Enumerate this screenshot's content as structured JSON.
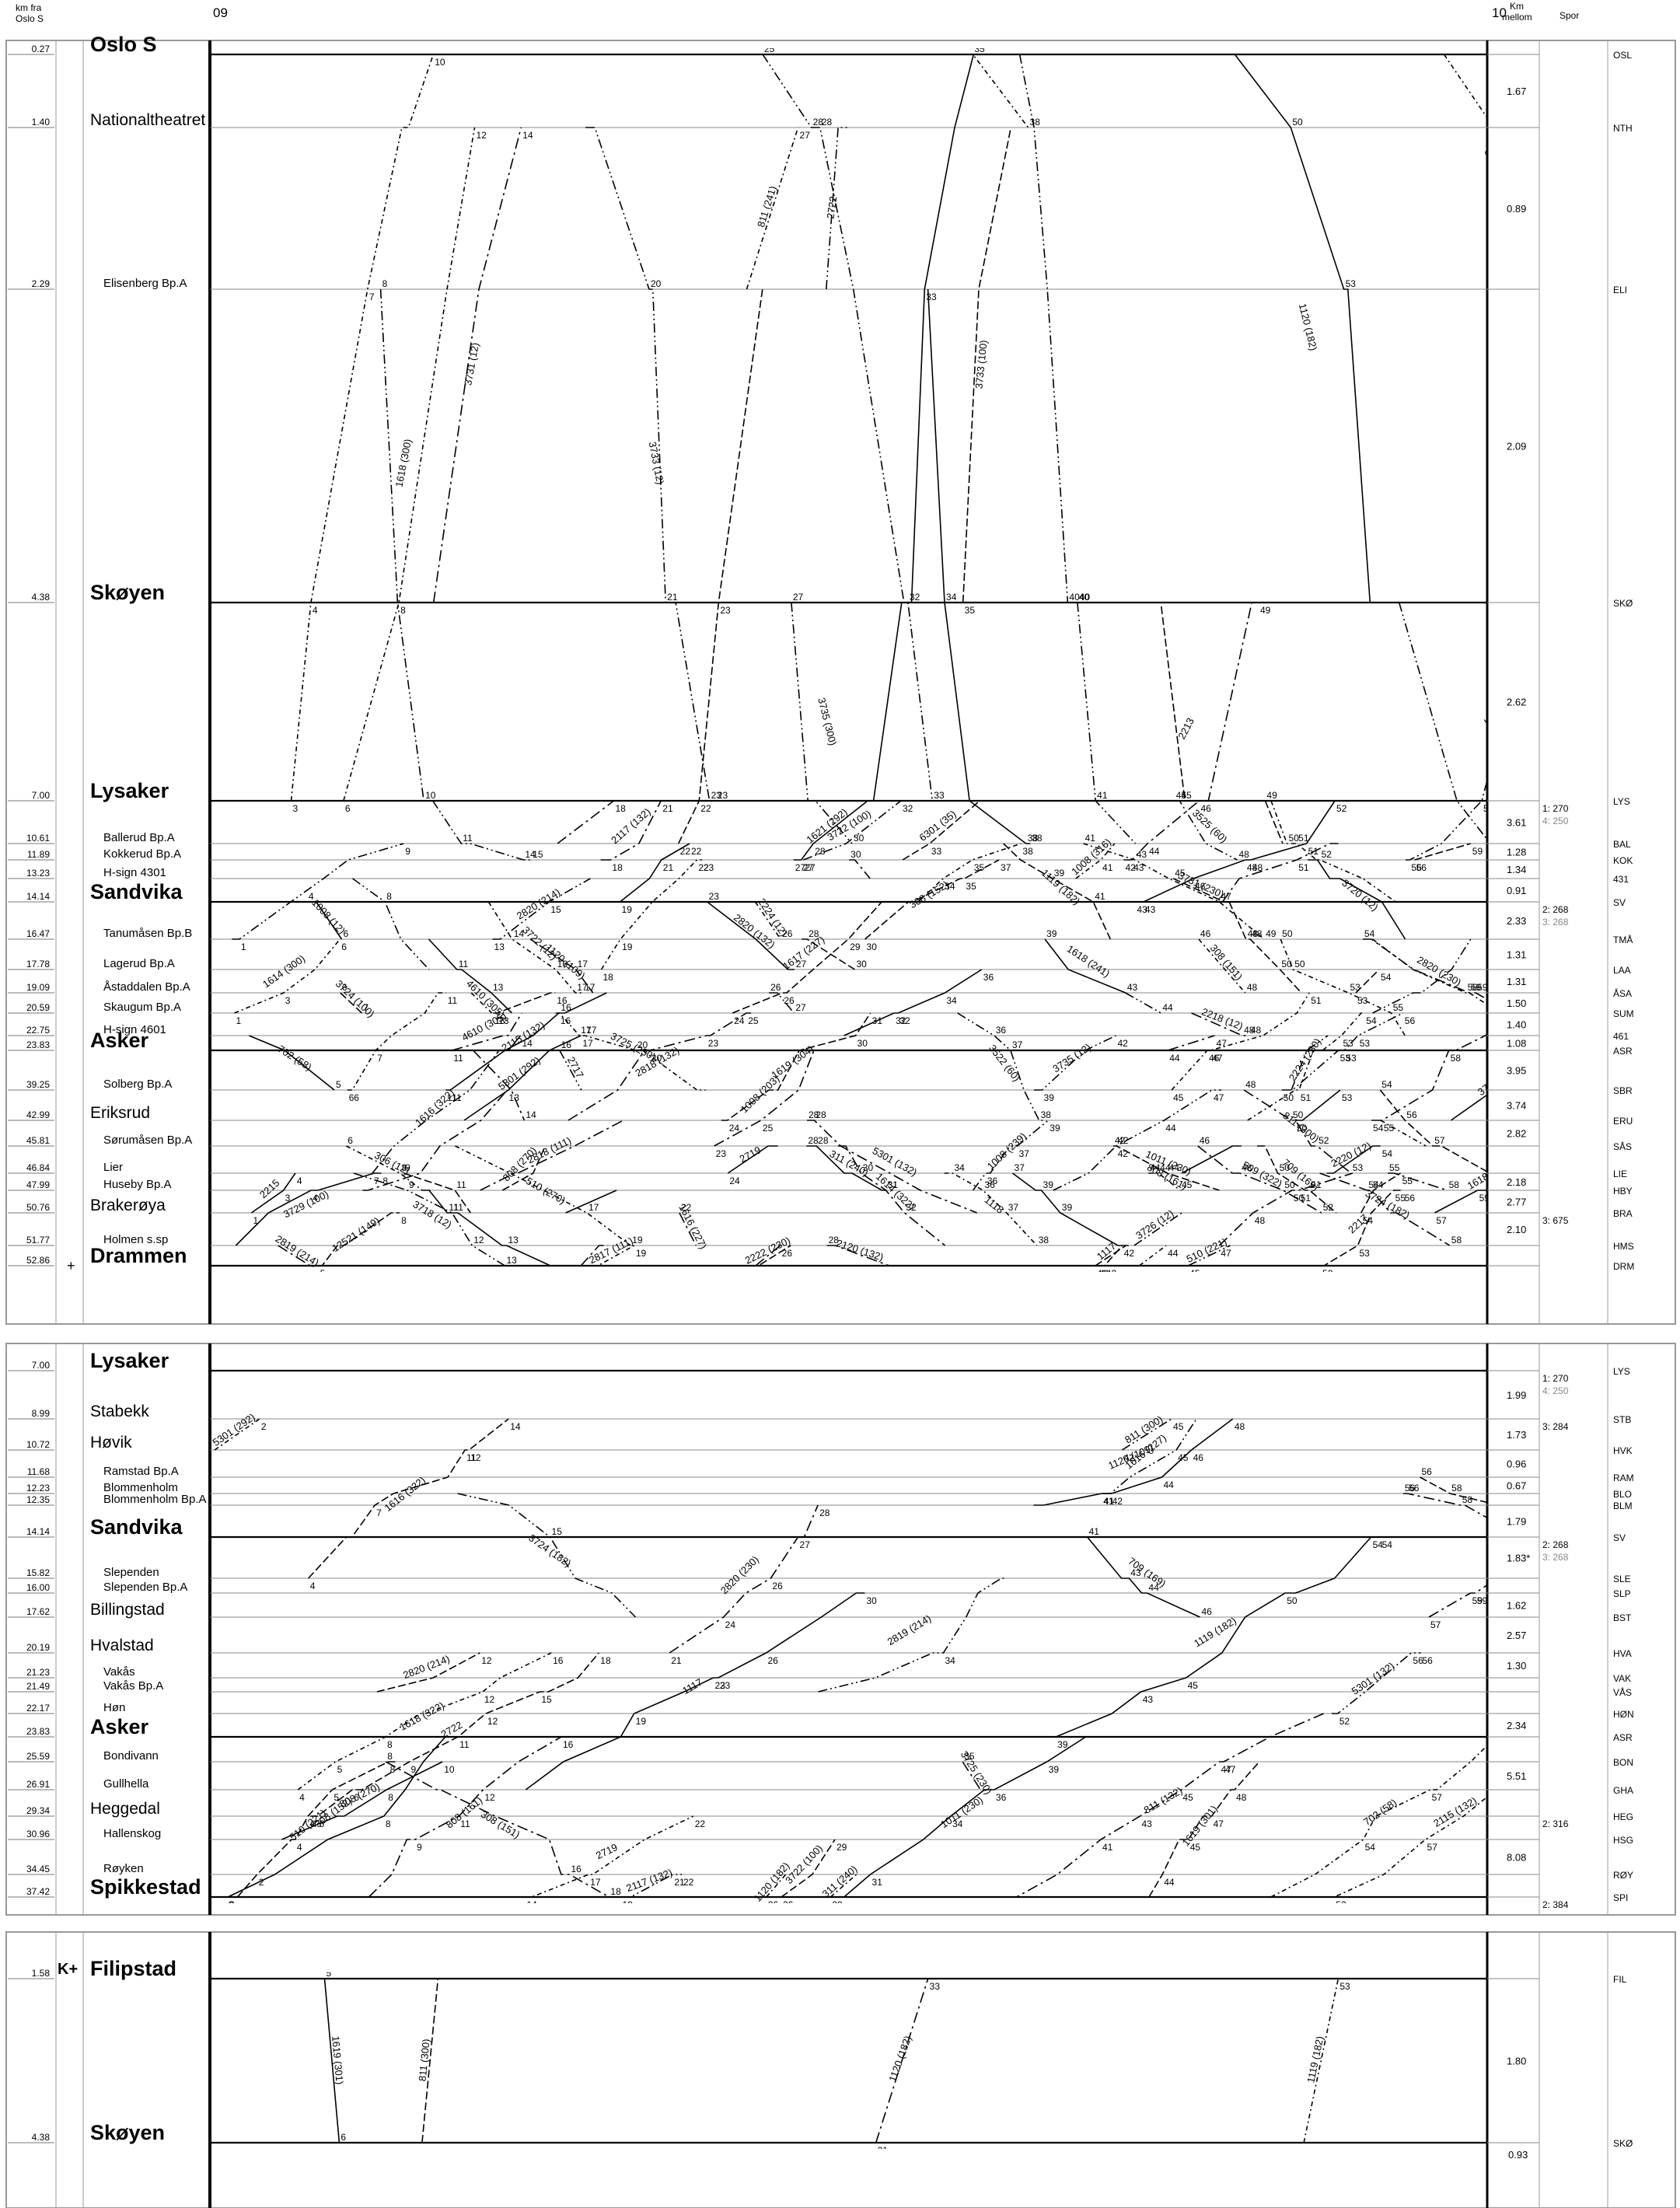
{
  "header": {
    "km_label": "km fra\nOslo S",
    "hour_start": "09",
    "hour_end": "10",
    "km_between": "Km\nmellom",
    "track": "Spor"
  },
  "panels": [
    {
      "id": "panel-main",
      "stations": [
        {
          "km": "0.27",
          "name": "Oslo S",
          "size": "major",
          "code": "OSL",
          "between": ""
        },
        {
          "km": "1.40",
          "name": "Nationaltheatret",
          "size": "medium",
          "code": "NTH",
          "between": "1.67"
        },
        {
          "km": "2.29",
          "name": "Elisenberg Bp.A",
          "size": "small",
          "code": "ELI",
          "between": "0.89"
        },
        {
          "km": "4.38",
          "name": "Skøyen",
          "size": "major",
          "code": "SKØ",
          "between": "2.09"
        },
        {
          "km": "7.00",
          "name": "Lysaker",
          "size": "major",
          "code": "LYS",
          "between": "2.62"
        },
        {
          "km": "10.61",
          "name": "Ballerud Bp.A",
          "size": "small",
          "code": "BAL",
          "between": "3.61"
        },
        {
          "km": "11.89",
          "name": "Kokkerud Bp.A",
          "size": "small",
          "code": "KOK",
          "between": "1.28"
        },
        {
          "km": "13.23",
          "name": "H-sign 4301",
          "size": "small",
          "code": "431",
          "between": "1.34"
        },
        {
          "km": "14.14",
          "name": "Sandvika",
          "size": "major",
          "code": "SV",
          "between": "0.91"
        },
        {
          "km": "16.47",
          "name": "Tanumåsen Bp.B",
          "size": "small",
          "code": "TMÅ",
          "between": "2.33"
        },
        {
          "km": "17.78",
          "name": "Lagerud Bp.A",
          "size": "small",
          "code": "LAA",
          "between": "1.31"
        },
        {
          "km": "19.09",
          "name": "Åstaddalen Bp.A",
          "size": "small",
          "code": "ÅSA",
          "between": "1.31"
        },
        {
          "km": "20.59",
          "name": "Skaugum Bp.A",
          "size": "small",
          "code": "SUM",
          "between": "1.50"
        },
        {
          "km": "22.75",
          "name": "H-sign 4601",
          "size": "small",
          "code": "461",
          "between": "1.40"
        },
        {
          "km": "23.83",
          "name": "Asker",
          "size": "major",
          "code": "ASR",
          "between": "1.08"
        },
        {
          "km": "39.25",
          "name": "Solberg Bp.A",
          "size": "small",
          "code": "SBR",
          "between": "3.95"
        },
        {
          "km": "42.99",
          "name": "Eriksrud",
          "size": "medium",
          "code": "ERU",
          "between": "3.74"
        },
        {
          "km": "45.81",
          "name": "Sørumåsen Bp.A",
          "size": "small",
          "code": "SÅS",
          "between": "2.82"
        },
        {
          "km": "46.84",
          "name": "Lier",
          "size": "small",
          "code": "LIE",
          "between": ""
        },
        {
          "km": "47.99",
          "name": "Huseby Bp.A",
          "size": "small",
          "code": "HBY",
          "between": "2.18"
        },
        {
          "km": "50.76",
          "name": "Brakerøya",
          "size": "medium",
          "code": "BRA",
          "between": "2.77"
        },
        {
          "km": "51.77",
          "name": "Holmen s.sp",
          "size": "small",
          "code": "HMS",
          "between": "2.10"
        },
        {
          "km": "52.86",
          "name": "Drammen",
          "size": "major",
          "code": "DRM",
          "between": ""
        }
      ],
      "tracks": [
        {
          "at": "LYS",
          "lines": [
            "1:     270",
            "4:     250"
          ]
        },
        {
          "at": "SV",
          "lines": [
            "2:     268",
            "3:     268"
          ]
        },
        {
          "at": "BRA",
          "lines": [
            "3:     675"
          ]
        }
      ],
      "drammen_mark": "+"
    },
    {
      "id": "panel-spikkestad",
      "stations": [
        {
          "km": "7.00",
          "name": "Lysaker",
          "size": "major",
          "code": "LYS",
          "between": ""
        },
        {
          "km": "8.99",
          "name": "Stabekk",
          "size": "medium",
          "code": "STB",
          "between": "1.99"
        },
        {
          "km": "10.72",
          "name": "Høvik",
          "size": "medium",
          "code": "HVK",
          "between": "1.73"
        },
        {
          "km": "11.68",
          "name": "Ramstad Bp.A",
          "size": "small",
          "code": "RAM",
          "between": "0.96"
        },
        {
          "km": "12.23",
          "name": "Blommenholm",
          "size": "small",
          "code": "BLO",
          "between": "0.67"
        },
        {
          "km": "12.35",
          "name": "Blommenholm Bp.A",
          "size": "small",
          "code": "BLM",
          "between": ""
        },
        {
          "km": "14.14",
          "name": "Sandvika",
          "size": "major",
          "code": "SV",
          "between": "1.79"
        },
        {
          "km": "15.82",
          "name": "Slependen",
          "size": "small",
          "code": "SLE",
          "between": "1.83*"
        },
        {
          "km": "16.00",
          "name": "Slependen Bp.A",
          "size": "small",
          "code": "SLP",
          "between": ""
        },
        {
          "km": "17.62",
          "name": "Billingstad",
          "size": "medium",
          "code": "BST",
          "between": "1.62"
        },
        {
          "km": "20.19",
          "name": "Hvalstad",
          "size": "medium",
          "code": "HVA",
          "between": "2.57"
        },
        {
          "km": "21.23",
          "name": "Vakås",
          "size": "small",
          "code": "VAK",
          "between": "1.30"
        },
        {
          "km": "21.49",
          "name": "Vakås Bp.A",
          "size": "small",
          "code": "VÅS",
          "between": ""
        },
        {
          "km": "22.17",
          "name": "Høn",
          "size": "small",
          "code": "HØN",
          "between": ""
        },
        {
          "km": "23.83",
          "name": "Asker",
          "size": "major",
          "code": "ASR",
          "between": "2.34"
        },
        {
          "km": "25.59",
          "name": "Bondivann",
          "size": "small",
          "code": "BON",
          "between": ""
        },
        {
          "km": "26.91",
          "name": "Gullhella",
          "size": "small",
          "code": "GHA",
          "between": "5.51"
        },
        {
          "km": "29.34",
          "name": "Heggedal",
          "size": "medium",
          "code": "HEG",
          "between": ""
        },
        {
          "km": "30.96",
          "name": "Hallenskog",
          "size": "small",
          "code": "HSG",
          "between": ""
        },
        {
          "km": "34.45",
          "name": "Røyken",
          "size": "small",
          "code": "RØY",
          "between": "8.08"
        },
        {
          "km": "37.42",
          "name": "Spikkestad",
          "size": "major",
          "code": "SPI",
          "between": ""
        }
      ],
      "tracks": [
        {
          "at": "LYS",
          "lines": [
            "1:     270",
            "4:     250"
          ]
        },
        {
          "at": "STB",
          "lines": [
            "3:     284"
          ]
        },
        {
          "at": "SV",
          "lines": [
            "2:     268",
            "3:     268"
          ]
        },
        {
          "at": "HEG",
          "lines": [
            "2:     316"
          ]
        },
        {
          "at": "SPI",
          "lines": [
            "2:     384"
          ]
        }
      ]
    },
    {
      "id": "panel-filipstad",
      "stations": [
        {
          "km": "1.58",
          "name": "Filipstad",
          "size": "major",
          "code": "FIL",
          "between": "",
          "mark": "K+"
        },
        {
          "km": "4.38",
          "name": "Skøyen",
          "size": "major",
          "code": "SKØ",
          "between": "1.80"
        }
      ],
      "tracks": [],
      "extra_between": "0.93"
    }
  ],
  "train_labels": [
    "3729 (12)",
    "2218 (12)",
    "1617 (227)",
    "1118",
    "2717",
    "3729 (100)",
    "509 (322)",
    "808 (270)",
    "2817 (111)",
    "1616 (322)",
    "311 (240)",
    "2117 (132)",
    "308 (152)",
    "2820 (230)",
    "1619 (301)",
    "1120 (182)",
    "811 (300)",
    "1119 (182)",
    "510 (270)",
    "2722",
    "1618 (322)",
    "2819 (214)",
    "1011 (230)",
    "3725 (230)",
    "3525 (60)",
    "2115 (132)",
    "5301 (132)",
    "1117",
    "808 (161)",
    "3722 (100)",
    "702 (58)",
    "1616 (227)",
    "709 (169)",
    "308 (151)",
    "2820 (214)",
    "2719",
    "3724 (182)",
    "1120 (109)",
    "811 (132)",
    "510 (221)",
    "5301 (292)",
    "2120 (132)",
    "3733 (100)",
    "1618 (300)",
    "3726 (12)",
    "1008 (12)",
    "2818 (111)",
    "2217",
    "3722 (12)",
    "3522 (60)",
    "2220 (12)",
    "3731 (12)",
    "3724 (100)",
    "811 (241)",
    "3733 (12)",
    "1618 (241)",
    "4610 (305)",
    "3731 (230)",
    "1614 (300)",
    "1008 (239)",
    "3720 (12)",
    "1614 (322)",
    "1619 (304)",
    "4610 (305)",
    "3735 (12)",
    "1621 (292)",
    "1008 (203)",
    "6301 (35)",
    "306 (12)",
    "3718 (12)",
    "2215",
    "2213",
    "2222 (230)",
    "2224 (12)",
    "2224 (230)",
    "2820 (132)",
    "2818 (132)",
    "12521 (149)",
    "1008 (316)",
    "3735 (300)"
  ],
  "panel_main_bottom_labels": [
    "1008 (316)",
    "808 (322)",
    "2818 (12)",
    "1008 (203)",
    "6301 (35)"
  ]
}
